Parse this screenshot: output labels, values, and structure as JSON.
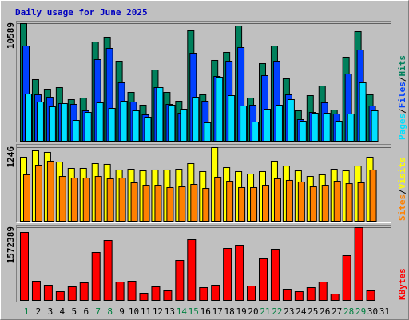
{
  "chart_data": [
    {
      "type": "bar",
      "title": "Daily usage for June 2025",
      "ylim": [
        0,
        10589
      ],
      "yticks": [
        10589
      ],
      "legend_separator": "/",
      "series": [
        {
          "name": "Hits",
          "color": "#00805c",
          "values": [
            10589,
            5547,
            4682,
            4826,
            3746,
            3890,
            8932,
            9365,
            7203,
            4394,
            3242,
            6411,
            4394,
            3602,
            9941,
            4178,
            7276,
            7996,
            10373,
            3890,
            6987,
            8572,
            5619,
            2737,
            4106,
            4970,
            2809,
            7564,
            9869,
            4178,
            null
          ]
        },
        {
          "name": "Files",
          "color": "#0040ff",
          "values": [
            8572,
            4178,
            3962,
            3386,
            3314,
            2737,
            7348,
            8356,
            5259,
            3530,
            2377,
            4826,
            3314,
            2521,
            7924,
            3602,
            5835,
            7203,
            8428,
            3242,
            5907,
            7203,
            4178,
            1945,
            2593,
            3458,
            2449,
            6051,
            8212,
            3170,
            null
          ]
        },
        {
          "name": "Pages",
          "color": "#00e0ff",
          "values": [
            4250,
            3530,
            3098,
            3386,
            1873,
            2593,
            3458,
            2953,
            3602,
            2737,
            2161,
            4826,
            3242,
            2881,
            3962,
            1657,
            5763,
            4106,
            3170,
            1729,
            2881,
            3242,
            3746,
            1801,
            2521,
            2521,
            1801,
            2449,
            5259,
            2737,
            null
          ]
        }
      ]
    },
    {
      "type": "bar",
      "ylim": [
        0,
        1246
      ],
      "yticks": [
        1246
      ],
      "legend_separator": "/",
      "series": [
        {
          "name": "Visits",
          "color": "#ffff00",
          "values": [
            1083,
            1192,
            1165,
            1002,
            894,
            894,
            975,
            962,
            867,
            880,
            853,
            867,
            867,
            880,
            975,
            840,
            1246,
            907,
            840,
            799,
            840,
            1016,
            934,
            853,
            758,
            786,
            880,
            853,
            934,
            1083,
            null
          ]
        },
        {
          "name": "Sites",
          "color": "#ff8000",
          "values": [
            786,
            948,
            1016,
            758,
            731,
            731,
            758,
            718,
            731,
            650,
            609,
            609,
            569,
            582,
            623,
            555,
            745,
            677,
            569,
            569,
            609,
            718,
            691,
            664,
            582,
            609,
            677,
            636,
            650,
            867,
            null
          ]
        }
      ]
    },
    {
      "type": "bar",
      "ylim": [
        0,
        1572389
      ],
      "yticks": [
        1572389
      ],
      "categories": [
        "1",
        "2",
        "3",
        "4",
        "5",
        "6",
        "7",
        "8",
        "9",
        "10",
        "11",
        "12",
        "13",
        "14",
        "15",
        "16",
        "17",
        "18",
        "19",
        "20",
        "21",
        "22",
        "23",
        "24",
        "25",
        "26",
        "27",
        "28",
        "29",
        "30",
        "31"
      ],
      "category_colors": [
        "#008040",
        "#000000",
        "#000000",
        "#000000",
        "#000000",
        "#000000",
        "#008040",
        "#008040",
        "#000000",
        "#000000",
        "#000000",
        "#000000",
        "#000000",
        "#008040",
        "#008040",
        "#000000",
        "#000000",
        "#000000",
        "#000000",
        "#000000",
        "#008040",
        "#008040",
        "#000000",
        "#000000",
        "#000000",
        "#000000",
        "#000000",
        "#008040",
        "#008040",
        "#000000",
        "#000000"
      ],
      "series": [
        {
          "name": "KBytes",
          "color": "#ff0000",
          "values": [
            1468700,
            414700,
            328300,
            190100,
            293700,
            380100,
            1036700,
            1295900,
            397400,
            414700,
            155500,
            293700,
            207300,
            863900,
            1313200,
            276500,
            328300,
            1123100,
            1192200,
            311000,
            898500,
            1105900,
            241900,
            190100,
            276500,
            397400,
            138200,
            967600,
            1572389,
            207300,
            null
          ]
        }
      ]
    }
  ]
}
